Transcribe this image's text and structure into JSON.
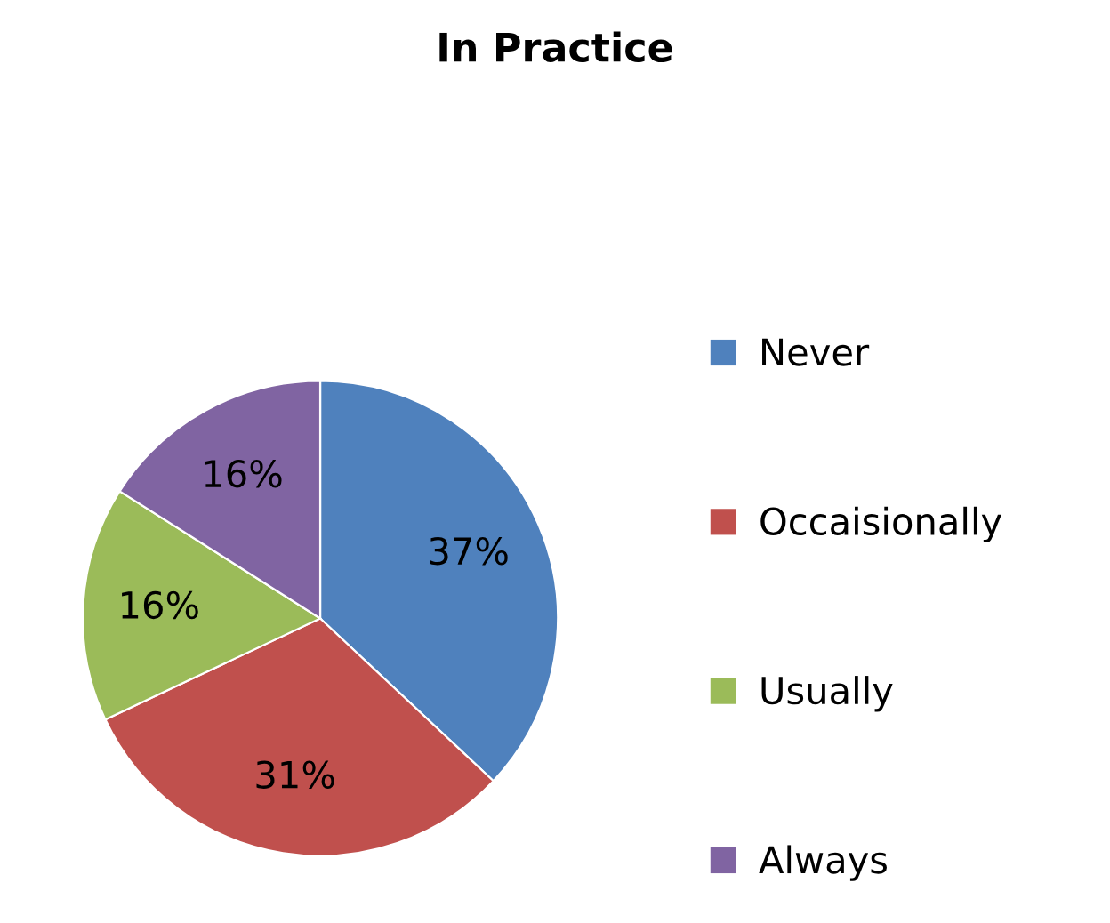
{
  "chart_data": {
    "type": "pie",
    "title": "In Practice",
    "categories": [
      "Never",
      "Occaisionally",
      "Usually",
      "Always"
    ],
    "values": [
      37,
      31,
      16,
      16
    ],
    "value_labels": [
      "37%",
      "31%",
      "16%",
      "16%"
    ],
    "colors": [
      "#4f81bd",
      "#c0504d",
      "#9bbb59",
      "#8064a2"
    ],
    "legend": "right"
  }
}
